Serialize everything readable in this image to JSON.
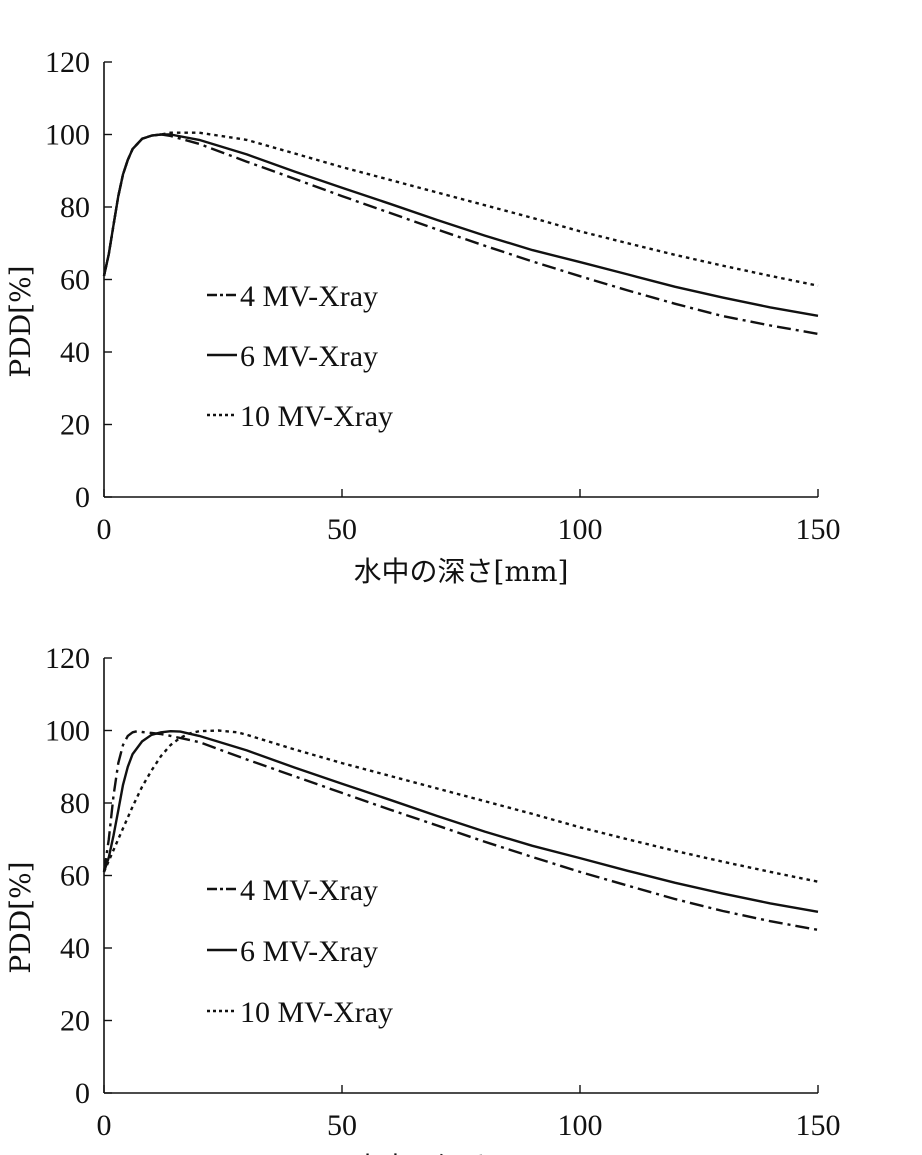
{
  "chart_data": [
    {
      "type": "line",
      "xlabel": "水中の深さ[mm]",
      "ylabel": "PDD[%]",
      "xlim": [
        0,
        150
      ],
      "ylim": [
        0,
        120
      ],
      "x_ticks": [
        "0",
        "50",
        "100",
        "150"
      ],
      "y_ticks": [
        "0",
        "20",
        "40",
        "60",
        "80",
        "100",
        "120"
      ],
      "grid": false,
      "legend_position": "center-left",
      "series": [
        {
          "name": "4 MV-Xray",
          "style": "dashdot",
          "x": [
            0,
            1,
            2,
            3,
            4,
            5,
            6,
            8,
            10,
            12,
            14,
            20,
            30,
            40,
            50,
            60,
            70,
            80,
            90,
            100,
            110,
            120,
            130,
            140,
            150
          ],
          "y": [
            61,
            67,
            75,
            83,
            89,
            93,
            96,
            98.8,
            99.7,
            100,
            99.6,
            97.4,
            92.5,
            87.8,
            83,
            78.4,
            73.8,
            69.3,
            65,
            60.9,
            57,
            53.3,
            49.9,
            47.3,
            45
          ]
        },
        {
          "name": "6 MV-Xray",
          "style": "solid",
          "x": [
            0,
            1,
            2,
            3,
            4,
            5,
            6,
            8,
            10,
            12,
            14,
            20,
            30,
            40,
            50,
            60,
            70,
            80,
            90,
            100,
            110,
            120,
            130,
            140,
            150
          ],
          "y": [
            61,
            67,
            75,
            83,
            89,
            93,
            96,
            98.8,
            99.7,
            100,
            100,
            98.5,
            94.5,
            89.8,
            85.3,
            80.9,
            76.4,
            72.1,
            68.1,
            64.8,
            61.4,
            58,
            55,
            52.3,
            50
          ]
        },
        {
          "name": "10 MV-Xray",
          "style": "dotted",
          "x": [
            0,
            1,
            2,
            3,
            4,
            5,
            6,
            8,
            10,
            12,
            14,
            20,
            30,
            40,
            50,
            60,
            70,
            80,
            90,
            100,
            110,
            120,
            130,
            140,
            150
          ],
          "y": [
            61,
            67,
            75,
            83,
            89,
            93,
            96,
            98.8,
            99.7,
            100,
            100.5,
            100.5,
            98.5,
            94.8,
            91,
            87.5,
            84,
            80.5,
            77,
            73.3,
            70,
            66.8,
            63.8,
            61,
            58.3
          ]
        }
      ]
    },
    {
      "type": "line",
      "xlabel": "水中の深さ[mm]",
      "ylabel": "PDD[%]",
      "xlim": [
        0,
        150
      ],
      "ylim": [
        0,
        120
      ],
      "x_ticks": [
        "0",
        "50",
        "100",
        "150"
      ],
      "y_ticks": [
        "0",
        "20",
        "40",
        "60",
        "80",
        "100",
        "120"
      ],
      "grid": false,
      "legend_position": "center-left",
      "series": [
        {
          "name": "4 MV-Xray",
          "style": "dashdot",
          "x": [
            0,
            1,
            2,
            3,
            4,
            5,
            6,
            7,
            8,
            10,
            12,
            14,
            20,
            30,
            40,
            50,
            60,
            70,
            80,
            90,
            100,
            110,
            120,
            130,
            140,
            150
          ],
          "y": [
            61,
            70,
            82,
            91,
            96,
            98.5,
            99.5,
            99.8,
            99.6,
            99.3,
            99,
            98.5,
            96.8,
            92,
            87.4,
            82.8,
            78.2,
            73.8,
            69.3,
            65.1,
            61,
            57.2,
            53.5,
            50.2,
            47.4,
            45
          ]
        },
        {
          "name": "6 MV-Xray",
          "style": "solid",
          "x": [
            0,
            1,
            2,
            3,
            4,
            5,
            6,
            8,
            10,
            12,
            14,
            16,
            20,
            30,
            40,
            50,
            60,
            70,
            80,
            90,
            100,
            110,
            120,
            130,
            140,
            150
          ],
          "y": [
            61,
            65,
            71,
            78,
            85,
            90,
            93.5,
            97,
            98.8,
            99.5,
            99.8,
            99.7,
            98.5,
            94.5,
            89.8,
            85.3,
            80.9,
            76.4,
            72.1,
            68.2,
            64.8,
            61.3,
            58,
            55,
            52.3,
            50
          ]
        },
        {
          "name": "10 MV-Xray",
          "style": "dotted",
          "x": [
            0,
            2,
            4,
            6,
            8,
            10,
            12,
            14,
            16,
            18,
            20,
            24,
            28,
            30,
            40,
            50,
            60,
            70,
            80,
            90,
            100,
            110,
            120,
            130,
            140,
            150
          ],
          "y": [
            61,
            67,
            73,
            79,
            84.5,
            89,
            93,
            96,
            98,
            99.2,
            99.8,
            100,
            99.5,
            98.8,
            94.8,
            91,
            87.5,
            84,
            80.5,
            77,
            73.3,
            70,
            66.8,
            63.8,
            61,
            58.3
          ]
        }
      ]
    }
  ]
}
